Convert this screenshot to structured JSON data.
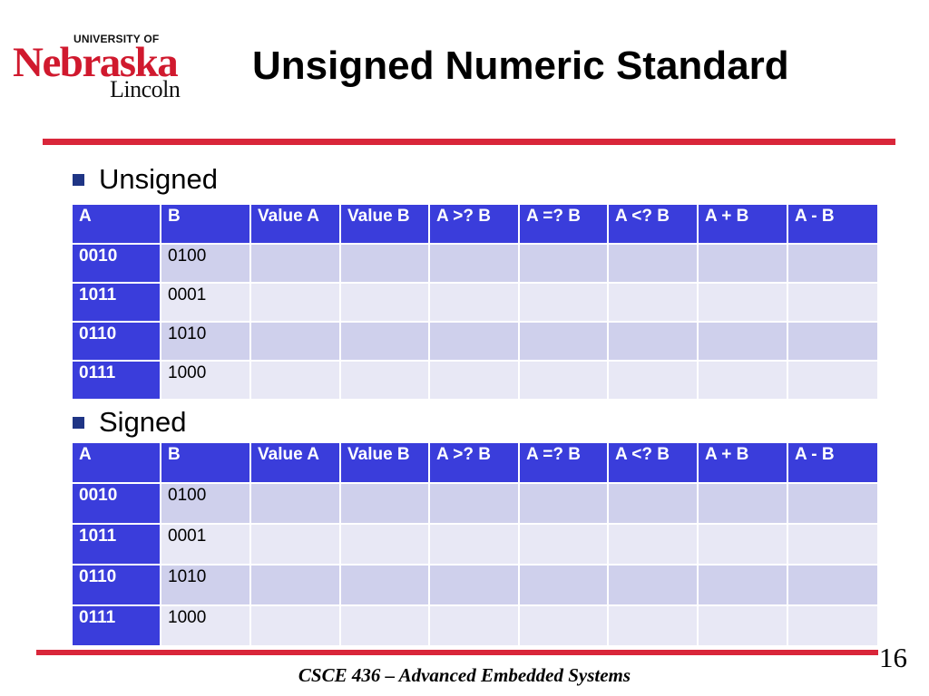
{
  "logo": {
    "line1": "UNIVERSITY OF",
    "line2": "Nebraska",
    "line3": "Lincoln"
  },
  "title": "Unsigned Numeric Standard",
  "sections": [
    {
      "label": "Unsigned",
      "headers": [
        "A",
        "B",
        "Value A",
        "Value B",
        "A >? B",
        "A =? B",
        "A <? B",
        "A + B",
        "A - B"
      ],
      "rows": [
        {
          "a": "0010",
          "b": "0100"
        },
        {
          "a": "1011",
          "b": "0001"
        },
        {
          "a": "0110",
          "b": "1010"
        },
        {
          "a": "0111",
          "b": "1000"
        }
      ]
    },
    {
      "label": "Signed",
      "headers": [
        "A",
        "B",
        "Value A",
        "Value B",
        "A >? B",
        "A =? B",
        "A <? B",
        "A + B",
        "A - B"
      ],
      "rows": [
        {
          "a": "0010",
          "b": "0100"
        },
        {
          "a": "1011",
          "b": "0001"
        },
        {
          "a": "0110",
          "b": "1010"
        },
        {
          "a": "0111",
          "b": "1000"
        }
      ]
    }
  ],
  "footer": "CSCE 436 – Advanced Embedded Systems",
  "page_number": "16",
  "colors": {
    "accent_red": "#d9263a",
    "header_blue": "#3a3ddb",
    "row_dark": "#cfd0ec",
    "row_light": "#e8e8f5",
    "bullet": "#1f3585"
  }
}
